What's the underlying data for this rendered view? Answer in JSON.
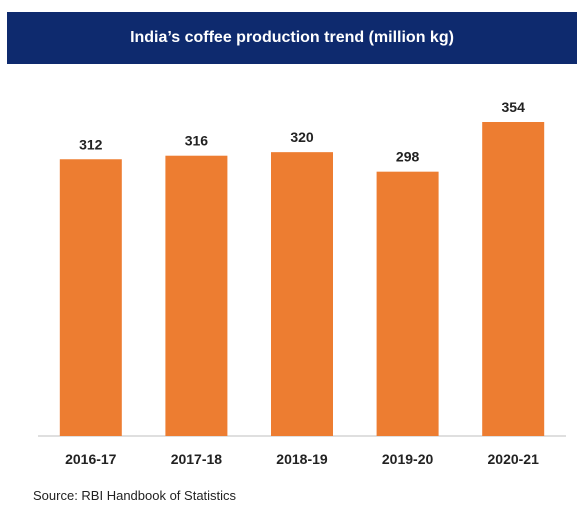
{
  "chart_data": {
    "type": "bar",
    "title": "India’s coffee production trend (million kg)",
    "categories": [
      "2016-17",
      "2017-18",
      "2018-19",
      "2019-20",
      "2020-21"
    ],
    "values": [
      312,
      316,
      320,
      298,
      354
    ],
    "data_labels": [
      "312",
      "316",
      "320",
      "298",
      "354"
    ],
    "xlabel": "",
    "ylabel": "",
    "y_axis_shown": false,
    "grid": false,
    "legend": "none",
    "colors": {
      "bar": "#ed7d31",
      "title_background": "#0e2a6e",
      "title_text": "#ffffff",
      "axis": "#bfbfbf"
    }
  },
  "source": "Source: RBI Handbook of Statistics"
}
